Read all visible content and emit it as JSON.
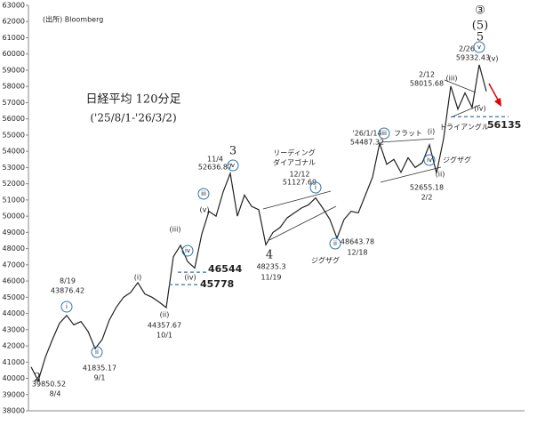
{
  "chart_data": {
    "type": "line",
    "source": "(出所) Bloomberg",
    "title": "日経平均 120分足",
    "subtitle": "('25/8/1-'26/3/2)",
    "color": "#222222",
    "values": [
      40700,
      39850,
      41300,
      42400,
      43400,
      43876,
      43300,
      43500,
      42900,
      41835,
      42400,
      43600,
      44400,
      45000,
      45300,
      45900,
      45200,
      45000,
      44700,
      44358,
      47500,
      48200,
      47200,
      46800,
      48900,
      50300,
      50000,
      51500,
      52637,
      50000,
      51300,
      50600,
      50400,
      48235,
      49000,
      49300,
      49900,
      50200,
      50500,
      50700,
      51128,
      50500,
      49800,
      48644,
      49800,
      50300,
      50200,
      51300,
      52400,
      54487,
      53200,
      53500,
      52700,
      53600,
      53000,
      53300,
      54400,
      52655,
      54800,
      58016,
      56600,
      57600,
      56700,
      59332,
      57700
    ],
    "ylim": [
      38000,
      63000
    ],
    "yticks": [
      38000,
      39000,
      40000,
      41000,
      42000,
      43000,
      44000,
      45000,
      46000,
      47000,
      48000,
      49000,
      50000,
      51000,
      52000,
      53000,
      54000,
      55000,
      56000,
      57000,
      58000,
      59000,
      60000,
      61000,
      62000,
      63000
    ],
    "levels": [
      {
        "value": 46544,
        "color": "#1f3e7a"
      },
      {
        "value": 45778,
        "color": "#1f3e7a"
      },
      {
        "value": 56135,
        "color": "#1f3e7a"
      }
    ],
    "annotations": [
      {
        "text": "8/19"
      },
      {
        "text": "43876.42"
      },
      {
        "text": "i",
        "circled": true
      },
      {
        "text": "ii",
        "circled": true
      },
      {
        "text": "41835.17"
      },
      {
        "text": "9/1"
      },
      {
        "text": "2"
      },
      {
        "text": "39850.52"
      },
      {
        "text": "8/4"
      },
      {
        "text": "(i)"
      },
      {
        "text": "(ii)"
      },
      {
        "text": "44357.67"
      },
      {
        "text": "10/1"
      },
      {
        "text": "(iii)"
      },
      {
        "text": "iv",
        "circled": true
      },
      {
        "text": "(iv)"
      },
      {
        "text": "iii",
        "circled": true
      },
      {
        "text": "(v)"
      },
      {
        "text": "11/4"
      },
      {
        "text": "52636.87"
      },
      {
        "text": "3"
      },
      {
        "text": "v",
        "circled": true
      },
      {
        "text": "4"
      },
      {
        "text": "48235.3"
      },
      {
        "text": "11/19"
      },
      {
        "text": "リーディング",
        "color": "#2e75b6"
      },
      {
        "text": "ダイアゴナル",
        "color": "#2e75b6"
      },
      {
        "text": "12/12"
      },
      {
        "text": "51127.69"
      },
      {
        "text": "i",
        "circled": true
      },
      {
        "text": "ii",
        "circled": true
      },
      {
        "text": "48643.78"
      },
      {
        "text": "12/18"
      },
      {
        "text": "ジグザグ",
        "color": "#2e75b6"
      },
      {
        "text": "'26/1/14"
      },
      {
        "text": "54487.32"
      },
      {
        "text": "iii",
        "circled": true
      },
      {
        "text": "フラット",
        "color": "#2e75b6"
      },
      {
        "text": "(i)"
      },
      {
        "text": "iv",
        "circled": true
      },
      {
        "text": "ジグザグ",
        "color": "#2e75b6"
      },
      {
        "text": "(ii)"
      },
      {
        "text": "52655.18",
        "color": "#e00000"
      },
      {
        "text": "2/2",
        "color": "#e00000"
      },
      {
        "text": "2/12"
      },
      {
        "text": "58015.68"
      },
      {
        "text": "(iii)"
      },
      {
        "text": "(iv)"
      },
      {
        "text": "トライアングル",
        "color": "#2e75b6"
      },
      {
        "text": "2/26",
        "color": "#e00000"
      },
      {
        "text": "59332.43",
        "color": "#e00000"
      },
      {
        "text": "(v)"
      },
      {
        "text": "v",
        "circled": true
      },
      {
        "text": "5"
      },
      {
        "text": "(5)"
      },
      {
        "text": "③"
      }
    ]
  }
}
